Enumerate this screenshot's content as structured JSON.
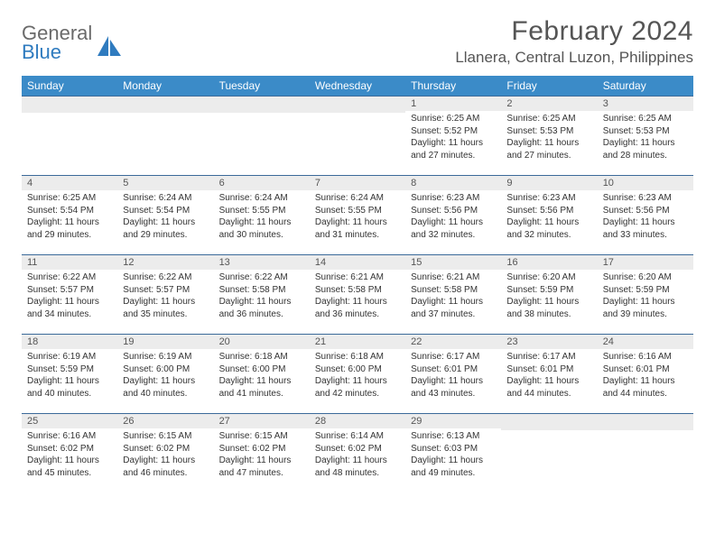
{
  "logo": {
    "general": "General",
    "blue": "Blue",
    "accent_color": "#2f7bbf",
    "text_color": "#6a6a6a"
  },
  "header": {
    "title": "February 2024",
    "location": "Llanera, Central Luzon, Philippines"
  },
  "colors": {
    "header_bg": "#3b8bc8",
    "header_text": "#ffffff",
    "cell_border": "#3b6a9a",
    "daynum_bg": "#ececec",
    "body_text": "#333333"
  },
  "dayNames": [
    "Sunday",
    "Monday",
    "Tuesday",
    "Wednesday",
    "Thursday",
    "Friday",
    "Saturday"
  ],
  "weeks": [
    [
      {
        "n": "",
        "lines": []
      },
      {
        "n": "",
        "lines": []
      },
      {
        "n": "",
        "lines": []
      },
      {
        "n": "",
        "lines": []
      },
      {
        "n": "1",
        "lines": [
          "Sunrise: 6:25 AM",
          "Sunset: 5:52 PM",
          "Daylight: 11 hours and 27 minutes."
        ]
      },
      {
        "n": "2",
        "lines": [
          "Sunrise: 6:25 AM",
          "Sunset: 5:53 PM",
          "Daylight: 11 hours and 27 minutes."
        ]
      },
      {
        "n": "3",
        "lines": [
          "Sunrise: 6:25 AM",
          "Sunset: 5:53 PM",
          "Daylight: 11 hours and 28 minutes."
        ]
      }
    ],
    [
      {
        "n": "4",
        "lines": [
          "Sunrise: 6:25 AM",
          "Sunset: 5:54 PM",
          "Daylight: 11 hours and 29 minutes."
        ]
      },
      {
        "n": "5",
        "lines": [
          "Sunrise: 6:24 AM",
          "Sunset: 5:54 PM",
          "Daylight: 11 hours and 29 minutes."
        ]
      },
      {
        "n": "6",
        "lines": [
          "Sunrise: 6:24 AM",
          "Sunset: 5:55 PM",
          "Daylight: 11 hours and 30 minutes."
        ]
      },
      {
        "n": "7",
        "lines": [
          "Sunrise: 6:24 AM",
          "Sunset: 5:55 PM",
          "Daylight: 11 hours and 31 minutes."
        ]
      },
      {
        "n": "8",
        "lines": [
          "Sunrise: 6:23 AM",
          "Sunset: 5:56 PM",
          "Daylight: 11 hours and 32 minutes."
        ]
      },
      {
        "n": "9",
        "lines": [
          "Sunrise: 6:23 AM",
          "Sunset: 5:56 PM",
          "Daylight: 11 hours and 32 minutes."
        ]
      },
      {
        "n": "10",
        "lines": [
          "Sunrise: 6:23 AM",
          "Sunset: 5:56 PM",
          "Daylight: 11 hours and 33 minutes."
        ]
      }
    ],
    [
      {
        "n": "11",
        "lines": [
          "Sunrise: 6:22 AM",
          "Sunset: 5:57 PM",
          "Daylight: 11 hours and 34 minutes."
        ]
      },
      {
        "n": "12",
        "lines": [
          "Sunrise: 6:22 AM",
          "Sunset: 5:57 PM",
          "Daylight: 11 hours and 35 minutes."
        ]
      },
      {
        "n": "13",
        "lines": [
          "Sunrise: 6:22 AM",
          "Sunset: 5:58 PM",
          "Daylight: 11 hours and 36 minutes."
        ]
      },
      {
        "n": "14",
        "lines": [
          "Sunrise: 6:21 AM",
          "Sunset: 5:58 PM",
          "Daylight: 11 hours and 36 minutes."
        ]
      },
      {
        "n": "15",
        "lines": [
          "Sunrise: 6:21 AM",
          "Sunset: 5:58 PM",
          "Daylight: 11 hours and 37 minutes."
        ]
      },
      {
        "n": "16",
        "lines": [
          "Sunrise: 6:20 AM",
          "Sunset: 5:59 PM",
          "Daylight: 11 hours and 38 minutes."
        ]
      },
      {
        "n": "17",
        "lines": [
          "Sunrise: 6:20 AM",
          "Sunset: 5:59 PM",
          "Daylight: 11 hours and 39 minutes."
        ]
      }
    ],
    [
      {
        "n": "18",
        "lines": [
          "Sunrise: 6:19 AM",
          "Sunset: 5:59 PM",
          "Daylight: 11 hours and 40 minutes."
        ]
      },
      {
        "n": "19",
        "lines": [
          "Sunrise: 6:19 AM",
          "Sunset: 6:00 PM",
          "Daylight: 11 hours and 40 minutes."
        ]
      },
      {
        "n": "20",
        "lines": [
          "Sunrise: 6:18 AM",
          "Sunset: 6:00 PM",
          "Daylight: 11 hours and 41 minutes."
        ]
      },
      {
        "n": "21",
        "lines": [
          "Sunrise: 6:18 AM",
          "Sunset: 6:00 PM",
          "Daylight: 11 hours and 42 minutes."
        ]
      },
      {
        "n": "22",
        "lines": [
          "Sunrise: 6:17 AM",
          "Sunset: 6:01 PM",
          "Daylight: 11 hours and 43 minutes."
        ]
      },
      {
        "n": "23",
        "lines": [
          "Sunrise: 6:17 AM",
          "Sunset: 6:01 PM",
          "Daylight: 11 hours and 44 minutes."
        ]
      },
      {
        "n": "24",
        "lines": [
          "Sunrise: 6:16 AM",
          "Sunset: 6:01 PM",
          "Daylight: 11 hours and 44 minutes."
        ]
      }
    ],
    [
      {
        "n": "25",
        "lines": [
          "Sunrise: 6:16 AM",
          "Sunset: 6:02 PM",
          "Daylight: 11 hours and 45 minutes."
        ]
      },
      {
        "n": "26",
        "lines": [
          "Sunrise: 6:15 AM",
          "Sunset: 6:02 PM",
          "Daylight: 11 hours and 46 minutes."
        ]
      },
      {
        "n": "27",
        "lines": [
          "Sunrise: 6:15 AM",
          "Sunset: 6:02 PM",
          "Daylight: 11 hours and 47 minutes."
        ]
      },
      {
        "n": "28",
        "lines": [
          "Sunrise: 6:14 AM",
          "Sunset: 6:02 PM",
          "Daylight: 11 hours and 48 minutes."
        ]
      },
      {
        "n": "29",
        "lines": [
          "Sunrise: 6:13 AM",
          "Sunset: 6:03 PM",
          "Daylight: 11 hours and 49 minutes."
        ]
      },
      {
        "n": "",
        "lines": []
      },
      {
        "n": "",
        "lines": []
      }
    ]
  ]
}
